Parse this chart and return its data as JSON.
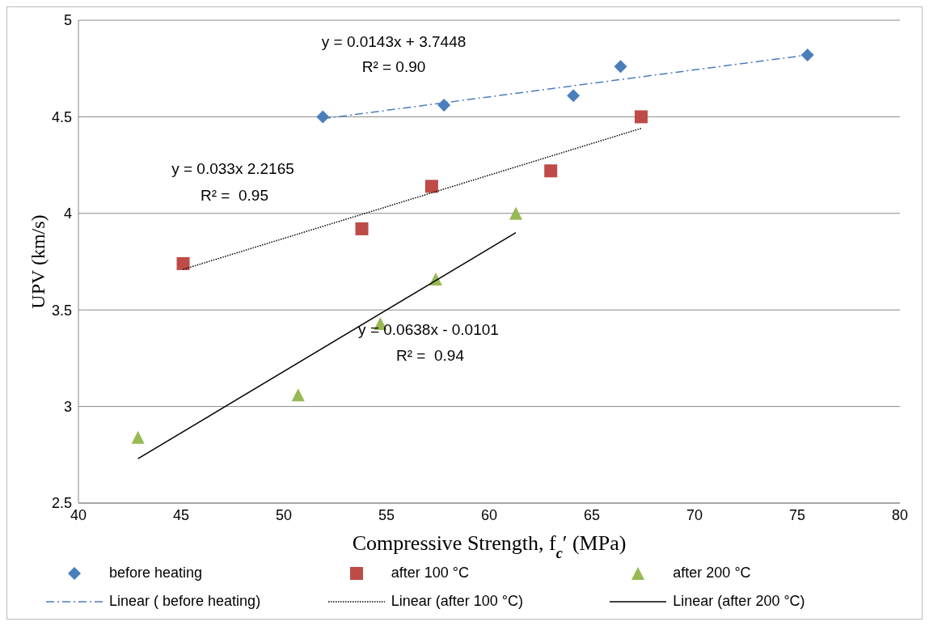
{
  "chart_data": {
    "type": "scatter",
    "xlabel": "Compressive Strength, f$_{c}$′ (MPa)",
    "ylabel": "UPV (km/s)",
    "xlim": [
      40,
      80
    ],
    "xticks": [
      40,
      45,
      50,
      55,
      60,
      65,
      70,
      75,
      80
    ],
    "ylim": [
      2.5,
      5
    ],
    "yticks": [
      2.5,
      3,
      3.5,
      4,
      4.5,
      5
    ],
    "grid": "y",
    "legend": "bottom",
    "series": [
      {
        "name": "before heating",
        "marker": "diamond",
        "color": "#4a7ebb",
        "x": [
          51.9,
          57.8,
          64.1,
          66.4,
          75.5
        ],
        "values": [
          4.5,
          4.56,
          4.61,
          4.76,
          4.82
        ]
      },
      {
        "name": "after 100 °C",
        "marker": "square",
        "color": "#be4b48",
        "x": [
          45.1,
          53.8,
          57.2,
          63.0,
          67.4
        ],
        "values": [
          3.74,
          3.92,
          4.14,
          4.22,
          4.5
        ]
      },
      {
        "name": "after 200 °C",
        "marker": "triangle",
        "color": "#98b954",
        "x": [
          42.9,
          50.7,
          54.7,
          57.4,
          61.3
        ],
        "values": [
          2.84,
          3.06,
          3.43,
          3.66,
          4.0
        ]
      },
      {
        "name": "Linear ( before heating)",
        "type": "line",
        "marker": "none",
        "line_style": "dashed",
        "color": "#4a7ebb",
        "x": [
          51.9,
          75.5
        ],
        "values": [
          4.49,
          4.82
        ]
      },
      {
        "name": "Linear (after 100 °C)",
        "type": "line",
        "marker": "none",
        "line_style": "dotted",
        "color": "#000000",
        "x": [
          45.1,
          67.4
        ],
        "values": [
          3.71,
          4.44
        ]
      },
      {
        "name": "Linear (after 200 °C)",
        "type": "line",
        "marker": "none",
        "line_style": "solid",
        "color": "#000000",
        "x": [
          42.9,
          61.3
        ],
        "values": [
          2.73,
          3.9
        ]
      }
    ],
    "annotations": [
      "y = 0.0143x + 3.7448",
      "R² = 0.90",
      "y = 0.033x 2.2165",
      "R² =  0.95",
      "y = 0.0638x - 0.0101",
      "R² =  0.94"
    ]
  }
}
